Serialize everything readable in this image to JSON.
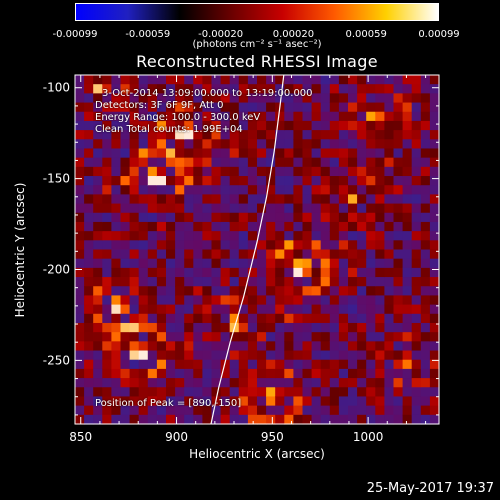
{
  "colorbar": {
    "ticks": [
      "-0.00099",
      "-0.00059",
      "-0.00020",
      "0.00020",
      "0.00059",
      "0.00099"
    ],
    "unit": "(photons cm⁻² s⁻¹ asec⁻²)",
    "colors": [
      "#0000ff",
      "#2020c0",
      "#000000",
      "#6a0000",
      "#c80000",
      "#ff5a00",
      "#ffd000",
      "#ffffff"
    ]
  },
  "title": "Reconstructed RHESSI Image",
  "annotations": {
    "time_range": "3-Oct-2014 13:09:00.000 to 13:19:00.000",
    "detectors": "Detectors: 3F 6F 9F, Att 0",
    "energy": "Energy Range: 100.0 - 300.0 keV",
    "clean": "Clean    Total counts: 1.99E+04",
    "peak": "Position of Peak = [890,-150]"
  },
  "footer": {
    "date": "25-May-2017 19:37"
  },
  "chart_data": {
    "type": "heatmap",
    "title": "Reconstructed RHESSI Image",
    "xlabel": "Heliocentric X (arcsec)",
    "ylabel": "Heliocentric Y (arcsec)",
    "xlim": [
      847,
      1037
    ],
    "ylim": [
      -285,
      -93
    ],
    "xticks": [
      850,
      900,
      950,
      1000
    ],
    "yticks": [
      -100,
      -150,
      -200,
      -250
    ],
    "value_range": [
      -0.00099,
      0.00099
    ],
    "peak": [
      890,
      -150
    ],
    "limb_curve": {
      "x": [
        918,
        922,
        928,
        935,
        942,
        947,
        951,
        954,
        956
      ],
      "y": [
        -285,
        -265,
        -240,
        -215,
        -185,
        -160,
        -135,
        -110,
        -93
      ]
    },
    "hotspots": [
      {
        "x": 890,
        "y": -150,
        "level": 1.0
      },
      {
        "x": 965,
        "y": -200,
        "level": 0.95
      },
      {
        "x": 870,
        "y": -220,
        "level": 0.85
      },
      {
        "x": 880,
        "y": -245,
        "level": 0.8
      },
      {
        "x": 905,
        "y": -125,
        "level": 0.7
      },
      {
        "x": 1005,
        "y": -115,
        "level": 0.65
      },
      {
        "x": 950,
        "y": -270,
        "level": 0.7
      },
      {
        "x": 990,
        "y": -160,
        "level": 0.55
      },
      {
        "x": 860,
        "y": -100,
        "level": 0.6
      },
      {
        "x": 930,
        "y": -230,
        "level": 0.45
      },
      {
        "x": 1020,
        "y": -250,
        "level": 0.5
      }
    ]
  }
}
